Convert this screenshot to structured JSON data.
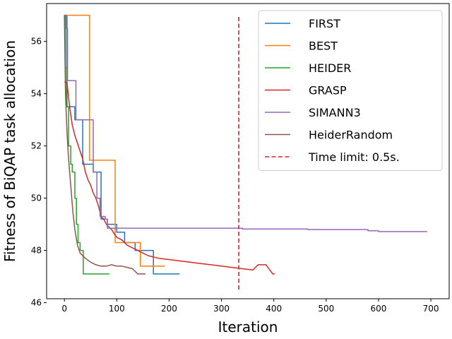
{
  "chart_data": {
    "type": "line",
    "title": "",
    "xlabel": "Iteration",
    "ylabel": "Fitness of BiQAP task allocation",
    "xlim": [
      -34,
      735
    ],
    "ylim": [
      46.15,
      57.45
    ],
    "xticks": [
      0,
      100,
      200,
      300,
      400,
      500,
      600,
      700
    ],
    "yticks": [
      46,
      48,
      50,
      52,
      54,
      56
    ],
    "grid": false,
    "legend_position": "top-right",
    "series": [
      {
        "name": "FIRST",
        "color": "#1f77b4",
        "step": true,
        "points": [
          [
            0,
            57.0
          ],
          [
            5,
            53.5
          ],
          [
            20,
            53.0
          ],
          [
            35,
            51.3
          ],
          [
            55,
            51.0
          ],
          [
            70,
            49.2
          ],
          [
            82,
            49.0
          ],
          [
            100,
            48.7
          ],
          [
            115,
            48.3
          ],
          [
            135,
            48.0
          ],
          [
            170,
            47.1
          ],
          [
            220,
            47.1
          ]
        ]
      },
      {
        "name": "BEST",
        "color": "#ff7f0e",
        "step": true,
        "points": [
          [
            0,
            57.0
          ],
          [
            48,
            57.0
          ],
          [
            48,
            51.45
          ],
          [
            97,
            51.45
          ],
          [
            97,
            48.3
          ],
          [
            145,
            48.3
          ],
          [
            145,
            47.4
          ],
          [
            192,
            47.4
          ]
        ]
      },
      {
        "name": "HEIDER",
        "color": "#2ca02c",
        "step": true,
        "points": [
          [
            0,
            57.0
          ],
          [
            2,
            55.0
          ],
          [
            4,
            53.5
          ],
          [
            8,
            52.0
          ],
          [
            12,
            51.3
          ],
          [
            15,
            51.0
          ],
          [
            20,
            50.0
          ],
          [
            23,
            49.0
          ],
          [
            26,
            48.3
          ],
          [
            30,
            48.0
          ],
          [
            36,
            47.1
          ],
          [
            86,
            47.1
          ]
        ]
      },
      {
        "name": "GRASP",
        "color": "#d62728",
        "step": false,
        "points": [
          [
            0,
            54.45
          ],
          [
            5,
            54.4
          ],
          [
            10,
            53.5
          ],
          [
            15,
            52.8
          ],
          [
            20,
            52.4
          ],
          [
            25,
            52.1
          ],
          [
            30,
            51.8
          ],
          [
            35,
            51.5
          ],
          [
            40,
            51.0
          ],
          [
            45,
            50.7
          ],
          [
            50,
            50.5
          ],
          [
            55,
            50.2
          ],
          [
            60,
            50.0
          ],
          [
            65,
            49.7
          ],
          [
            70,
            49.3
          ],
          [
            75,
            49.2
          ],
          [
            80,
            49.0
          ],
          [
            90,
            48.8
          ],
          [
            100,
            48.5
          ],
          [
            110,
            48.4
          ],
          [
            120,
            48.2
          ],
          [
            130,
            48.1
          ],
          [
            140,
            48.0
          ],
          [
            150,
            47.9
          ],
          [
            160,
            47.8
          ],
          [
            180,
            47.7
          ],
          [
            200,
            47.65
          ],
          [
            220,
            47.6
          ],
          [
            240,
            47.55
          ],
          [
            260,
            47.5
          ],
          [
            280,
            47.45
          ],
          [
            300,
            47.4
          ],
          [
            320,
            47.35
          ],
          [
            340,
            47.3
          ],
          [
            360,
            47.25
          ],
          [
            370,
            47.45
          ],
          [
            385,
            47.45
          ],
          [
            398,
            47.1
          ],
          [
            402,
            47.1
          ]
        ]
      },
      {
        "name": "SIMANN3",
        "color": "#9467bd",
        "step": true,
        "points": [
          [
            0,
            57.0
          ],
          [
            3,
            56.5
          ],
          [
            6,
            54.5
          ],
          [
            18,
            54.5
          ],
          [
            22,
            53.0
          ],
          [
            45,
            53.0
          ],
          [
            55,
            51.0
          ],
          [
            62,
            50.0
          ],
          [
            68,
            49.3
          ],
          [
            78,
            49.2
          ],
          [
            82,
            48.85
          ],
          [
            250,
            48.85
          ],
          [
            340,
            48.82
          ],
          [
            465,
            48.8
          ],
          [
            580,
            48.75
          ],
          [
            600,
            48.72
          ],
          [
            692,
            48.7
          ]
        ]
      },
      {
        "name": "HeiderRandom",
        "color": "#8c564b",
        "step": false,
        "points": [
          [
            0,
            57.0
          ],
          [
            2,
            54.0
          ],
          [
            5,
            52.5
          ],
          [
            8,
            51.5
          ],
          [
            12,
            50.5
          ],
          [
            16,
            49.5
          ],
          [
            20,
            48.8
          ],
          [
            25,
            48.2
          ],
          [
            30,
            47.9
          ],
          [
            35,
            47.8
          ],
          [
            40,
            47.7
          ],
          [
            50,
            47.55
          ],
          [
            60,
            47.45
          ],
          [
            70,
            47.4
          ],
          [
            80,
            47.4
          ],
          [
            90,
            47.45
          ],
          [
            100,
            47.4
          ],
          [
            110,
            47.4
          ],
          [
            120,
            47.35
          ],
          [
            130,
            47.3
          ],
          [
            140,
            47.1
          ],
          [
            155,
            47.1
          ]
        ]
      }
    ],
    "annotations": [
      {
        "name": "Time limit: 0.5s.",
        "color": "#d62728",
        "style": "dashed",
        "x": 333,
        "y_range": [
          46.5,
          57.0
        ]
      }
    ]
  }
}
